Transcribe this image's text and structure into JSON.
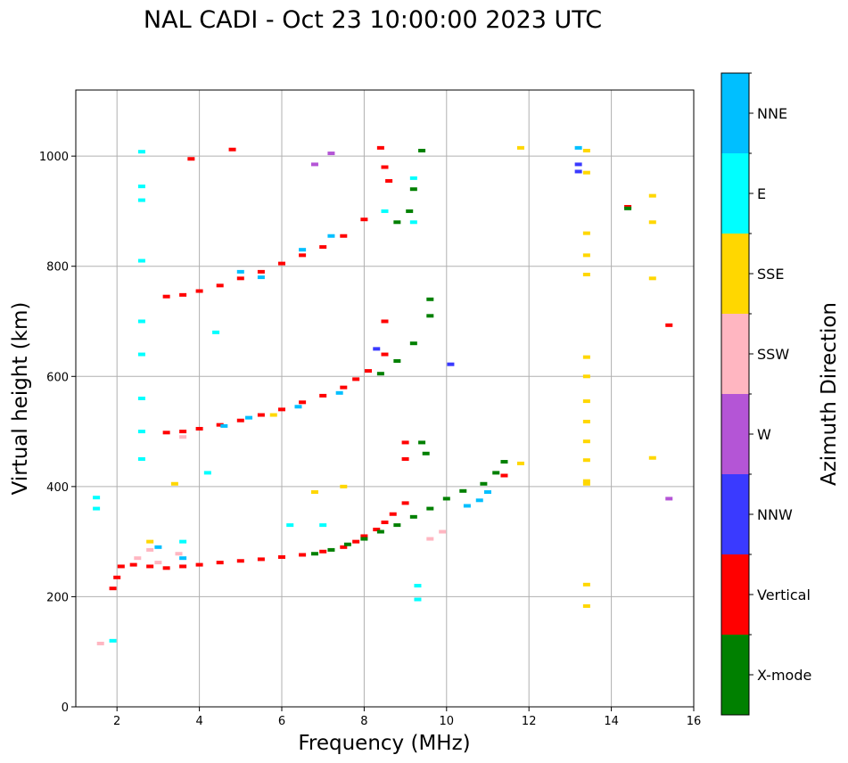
{
  "chart_data": {
    "type": "scatter",
    "title": "NAL CADI - Oct 23 10:00:00 2023 UTC",
    "xlabel": "Frequency (MHz)",
    "ylabel": "Virtual height (km)",
    "xlim": [
      1,
      16
    ],
    "ylim": [
      0,
      1120
    ],
    "xticks": [
      2,
      4,
      6,
      8,
      10,
      12,
      14,
      16
    ],
    "yticks": [
      0,
      200,
      400,
      600,
      800,
      1000
    ],
    "grid": true,
    "colorbar": {
      "label": "Azimuth Direction",
      "categories": [
        "X-mode",
        "Vertical",
        "NNW",
        "W",
        "SSW",
        "SSE",
        "E",
        "NNE"
      ],
      "colors": [
        "#008000",
        "#ff0000",
        "#3a3aff",
        "#b455d6",
        "#ffb6c1",
        "#ffd700",
        "#00ffff",
        "#00bfff"
      ]
    },
    "series": [
      {
        "name": "Vertical",
        "points": [
          [
            1.9,
            215
          ],
          [
            2.0,
            235
          ],
          [
            2.1,
            255
          ],
          [
            2.4,
            258
          ],
          [
            2.8,
            255
          ],
          [
            3.2,
            252
          ],
          [
            3.6,
            255
          ],
          [
            4.0,
            258
          ],
          [
            4.5,
            262
          ],
          [
            5.0,
            265
          ],
          [
            5.5,
            268
          ],
          [
            6.0,
            272
          ],
          [
            6.5,
            276
          ],
          [
            7.0,
            282
          ],
          [
            7.5,
            290
          ],
          [
            7.8,
            300
          ],
          [
            8.0,
            310
          ],
          [
            8.3,
            322
          ],
          [
            8.5,
            335
          ],
          [
            8.7,
            350
          ],
          [
            9.0,
            370
          ],
          [
            3.2,
            498
          ],
          [
            3.6,
            500
          ],
          [
            4.0,
            505
          ],
          [
            4.5,
            512
          ],
          [
            5.0,
            520
          ],
          [
            5.5,
            530
          ],
          [
            6.0,
            540
          ],
          [
            6.5,
            553
          ],
          [
            7.0,
            565
          ],
          [
            7.5,
            580
          ],
          [
            7.8,
            595
          ],
          [
            8.1,
            610
          ],
          [
            8.5,
            640
          ],
          [
            8.5,
            700
          ],
          [
            3.2,
            745
          ],
          [
            3.6,
            748
          ],
          [
            4.0,
            755
          ],
          [
            4.5,
            765
          ],
          [
            5.0,
            778
          ],
          [
            5.5,
            790
          ],
          [
            6.0,
            805
          ],
          [
            6.5,
            820
          ],
          [
            7.0,
            835
          ],
          [
            7.5,
            855
          ],
          [
            8.0,
            885
          ],
          [
            8.4,
            1015
          ],
          [
            8.5,
            980
          ],
          [
            8.6,
            955
          ],
          [
            9.0,
            480
          ],
          [
            9.0,
            450
          ],
          [
            14.4,
            908
          ],
          [
            15.4,
            693
          ],
          [
            11.4,
            420
          ],
          [
            3.8,
            995
          ],
          [
            4.8,
            1012
          ]
        ]
      },
      {
        "name": "X-mode",
        "points": [
          [
            6.8,
            278
          ],
          [
            7.2,
            285
          ],
          [
            7.6,
            295
          ],
          [
            8.0,
            305
          ],
          [
            8.4,
            318
          ],
          [
            8.8,
            330
          ],
          [
            9.2,
            345
          ],
          [
            9.6,
            360
          ],
          [
            10.0,
            378
          ],
          [
            10.4,
            392
          ],
          [
            10.9,
            405
          ],
          [
            11.2,
            425
          ],
          [
            11.4,
            445
          ],
          [
            8.4,
            605
          ],
          [
            8.8,
            628
          ],
          [
            9.2,
            660
          ],
          [
            9.6,
            710
          ],
          [
            9.6,
            740
          ],
          [
            8.8,
            880
          ],
          [
            9.1,
            900
          ],
          [
            9.2,
            940
          ],
          [
            9.4,
            1010
          ],
          [
            14.4,
            905
          ],
          [
            9.4,
            480
          ],
          [
            9.5,
            460
          ]
        ]
      },
      {
        "name": "NNW",
        "points": [
          [
            13.2,
            972
          ],
          [
            13.2,
            985
          ],
          [
            10.1,
            622
          ],
          [
            8.3,
            650
          ]
        ]
      },
      {
        "name": "W",
        "points": [
          [
            15.4,
            378
          ],
          [
            6.8,
            985
          ],
          [
            7.2,
            1005
          ]
        ]
      },
      {
        "name": "SSW",
        "points": [
          [
            2.5,
            270
          ],
          [
            3.0,
            262
          ],
          [
            3.5,
            278
          ],
          [
            2.8,
            285
          ],
          [
            9.6,
            305
          ],
          [
            9.9,
            318
          ],
          [
            1.6,
            115
          ],
          [
            3.6,
            490
          ]
        ]
      },
      {
        "name": "SSE",
        "points": [
          [
            13.4,
            1010
          ],
          [
            13.4,
            970
          ],
          [
            13.4,
            860
          ],
          [
            13.4,
            820
          ],
          [
            13.4,
            785
          ],
          [
            13.4,
            635
          ],
          [
            13.4,
            600
          ],
          [
            13.4,
            555
          ],
          [
            13.4,
            518
          ],
          [
            13.4,
            482
          ],
          [
            13.4,
            448
          ],
          [
            13.4,
            410
          ],
          [
            13.4,
            405
          ],
          [
            13.4,
            222
          ],
          [
            13.4,
            183
          ],
          [
            15.0,
            928
          ],
          [
            15.0,
            880
          ],
          [
            15.0,
            778
          ],
          [
            15.0,
            452
          ],
          [
            11.8,
            1015
          ],
          [
            11.8,
            442
          ],
          [
            7.5,
            400
          ],
          [
            6.8,
            390
          ],
          [
            3.4,
            405
          ],
          [
            2.8,
            300
          ],
          [
            5.8,
            530
          ]
        ]
      },
      {
        "name": "E",
        "points": [
          [
            1.5,
            380
          ],
          [
            1.5,
            360
          ],
          [
            2.6,
            1008
          ],
          [
            2.6,
            945
          ],
          [
            2.6,
            920
          ],
          [
            2.6,
            810
          ],
          [
            2.6,
            700
          ],
          [
            2.6,
            640
          ],
          [
            2.6,
            560
          ],
          [
            2.6,
            500
          ],
          [
            2.6,
            450
          ],
          [
            9.3,
            220
          ],
          [
            9.3,
            195
          ],
          [
            9.2,
            880
          ],
          [
            9.2,
            960
          ],
          [
            1.9,
            120
          ],
          [
            6.2,
            330
          ],
          [
            7.0,
            330
          ],
          [
            8.5,
            900
          ],
          [
            4.2,
            425
          ],
          [
            3.6,
            300
          ],
          [
            4.4,
            680
          ]
        ]
      },
      {
        "name": "NNE",
        "points": [
          [
            13.2,
            1015
          ],
          [
            5.0,
            790
          ],
          [
            5.5,
            780
          ],
          [
            6.5,
            830
          ],
          [
            7.2,
            855
          ],
          [
            4.6,
            510
          ],
          [
            5.2,
            525
          ],
          [
            6.4,
            545
          ],
          [
            7.4,
            570
          ],
          [
            3.0,
            290
          ],
          [
            3.6,
            270
          ],
          [
            10.5,
            365
          ],
          [
            10.8,
            375
          ],
          [
            11.0,
            390
          ]
        ]
      }
    ]
  }
}
